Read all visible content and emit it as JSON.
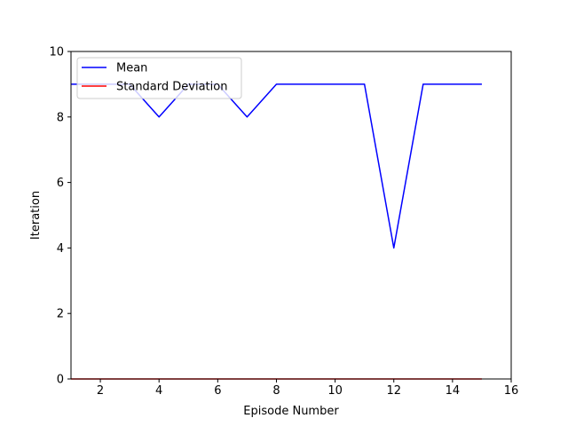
{
  "chart_data": {
    "type": "line",
    "title": "",
    "xlabel": "Episode Number",
    "ylabel": "Iteration",
    "xlim": [
      1,
      16
    ],
    "ylim": [
      0,
      10
    ],
    "xticks": [
      2,
      4,
      6,
      8,
      10,
      12,
      14,
      16
    ],
    "yticks": [
      0,
      2,
      4,
      6,
      8,
      10
    ],
    "grid": false,
    "legend_position": "top-left",
    "series": [
      {
        "name": "Mean",
        "color": "#0000ff",
        "x": [
          1,
          2,
          3,
          4,
          5,
          6,
          7,
          8,
          9,
          10,
          11,
          12,
          13,
          14,
          15
        ],
        "values": [
          9,
          9,
          9,
          8,
          9,
          9,
          8,
          9,
          9,
          9,
          9,
          4,
          9,
          9,
          9
        ]
      },
      {
        "name": "Standard Deviation",
        "color": "#ff0000",
        "x": [
          1,
          2,
          3,
          4,
          5,
          6,
          7,
          8,
          9,
          10,
          11,
          12,
          13,
          14,
          15
        ],
        "values": [
          0,
          0,
          0,
          0,
          0,
          0,
          0,
          0,
          0,
          0,
          0,
          0,
          0,
          0,
          0
        ]
      }
    ]
  }
}
